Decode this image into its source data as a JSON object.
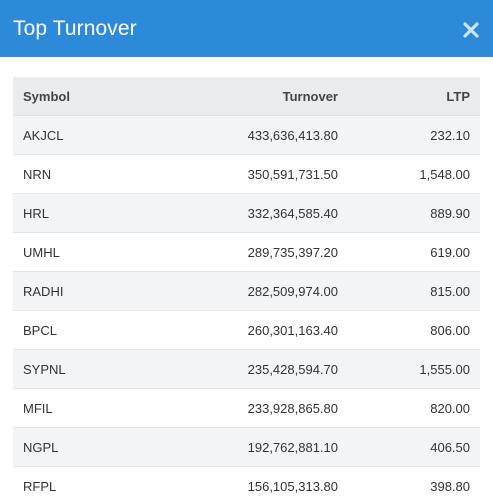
{
  "modal": {
    "title": "Top Turnover",
    "close_icon": "close-icon"
  },
  "table": {
    "headers": {
      "symbol": "Symbol",
      "turnover": "Turnover",
      "ltp": "LTP"
    },
    "rows": [
      {
        "symbol": "AKJCL",
        "turnover": "433,636,413.80",
        "ltp": "232.10"
      },
      {
        "symbol": "NRN",
        "turnover": "350,591,731.50",
        "ltp": "1,548.00"
      },
      {
        "symbol": "HRL",
        "turnover": "332,364,585.40",
        "ltp": "889.90"
      },
      {
        "symbol": "UMHL",
        "turnover": "289,735,397.20",
        "ltp": "619.00"
      },
      {
        "symbol": "RADHI",
        "turnover": "282,509,974.00",
        "ltp": "815.00"
      },
      {
        "symbol": "BPCL",
        "turnover": "260,301,163.40",
        "ltp": "806.00"
      },
      {
        "symbol": "SYPNL",
        "turnover": "235,428,594.70",
        "ltp": "1,555.00"
      },
      {
        "symbol": "MFIL",
        "turnover": "233,928,865.80",
        "ltp": "820.00"
      },
      {
        "symbol": "NGPL",
        "turnover": "192,762,881.10",
        "ltp": "406.50"
      },
      {
        "symbol": "RFPL",
        "turnover": "156,105,313.80",
        "ltp": "398.80"
      }
    ]
  },
  "colors": {
    "header_bg": "#2d8ad8",
    "table_head_bg": "#e9ecef",
    "row_alt_bg": "#f3f4f5"
  }
}
